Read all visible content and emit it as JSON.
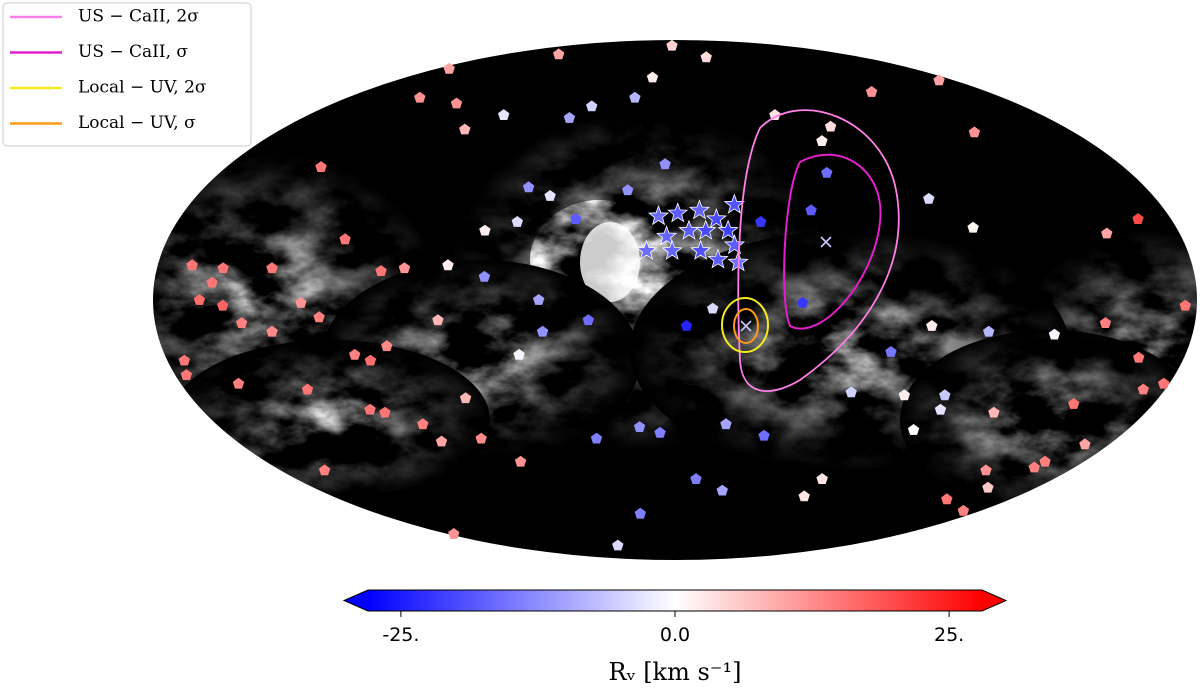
{
  "chart_data": {
    "type": "scatter",
    "colormap": "bwr",
    "clim": [
      -28,
      28
    ],
    "cticks": [
      {
        "value": -25,
        "label": "-25."
      },
      {
        "value": 0,
        "label": "0.0"
      },
      {
        "value": 25,
        "label": "25."
      }
    ],
    "colorbar_label": "Rᵥ [km s⁻¹]",
    "legend": [
      {
        "name": "US − CaII, 2σ",
        "color": "#ff80e8"
      },
      {
        "name": "US − CaII, σ",
        "color": "#e020c8"
      },
      {
        "name": "Local − UV, 2σ",
        "color": "#f4ec1a"
      },
      {
        "name": "Local − UV, σ",
        "color": "#ff9a1a"
      }
    ],
    "points": {
      "lon": [
        5,
        -30,
        170,
        122,
        15,
        22,
        140,
        115,
        43,
        51,
        84,
        -49,
        -72,
        -113,
        -170,
        96,
        -135,
        -64,
        142,
        4,
        -60,
        56,
        47,
        18,
        36,
        57,
        68,
        -31,
        -50,
        -95,
        -107,
        -168,
        -154,
        117,
        168,
        140,
        157,
        102,
        94,
        79,
        160,
        164,
        156,
        129,
        123,
        150,
        113,
        108,
        101,
        140,
        82,
        66,
        47,
        30,
        46,
        -4,
        -13,
        -44,
        -89,
        -76,
        -109,
        -132,
        -149,
        -176,
        55,
        176,
        174,
        -164,
        -178,
        -172,
        -100,
        -101,
        -85,
        -65,
        -150,
        159,
        135,
        116,
        111,
        78,
        99,
        96,
        79,
        14,
        6,
        -20,
        -36,
        32,
        -95,
        -122,
        -170,
        -163,
        -162,
        -142,
        -156,
        -70,
        -68,
        -10,
        -24,
        21,
        68,
        160,
        -146,
        -170,
        60,
        175
      ],
      "lat": [
        88,
        84,
        80,
        85,
        77,
        70,
        70,
        68,
        67,
        63,
        64,
        64,
        60,
        72,
        76,
        59,
        58,
        55,
        46,
        47,
        44,
        39,
        36,
        38,
        28,
        27,
        24,
        27,
        31,
        35,
        25,
        28,
        23,
        21,
        12,
        11,
        11,
        10,
        11,
        12,
        6,
        0,
        -2,
        -1,
        -6,
        -8,
        -19,
        -21,
        -16,
        -11,
        -7,
        8,
        0,
        -7,
        -11,
        -9,
        -3,
        -1,
        -9,
        -18,
        -11,
        -12,
        -8,
        -2,
        -19,
        -26,
        -21,
        -20,
        -29,
        -31,
        -33,
        -38,
        -33,
        -32,
        -36,
        -29,
        -31,
        -38,
        -39,
        -34,
        -43,
        -49,
        -48,
        -44,
        -46,
        -43,
        -47,
        -48,
        -45,
        -39,
        -50,
        -56,
        -58,
        -59,
        -65,
        -62,
        -68,
        -62,
        -66,
        -74,
        -56,
        -59,
        -69,
        -73,
        -85,
        -81
      ],
      "rv": [
        5,
        4,
        10,
        10,
        2,
        -8,
        12,
        12,
        -5,
        -10,
        -3,
        3,
        4,
        12,
        10,
        8,
        12,
        2,
        15,
        -12,
        -16,
        -12,
        -3,
        -12,
        -18,
        -4,
        2,
        -22,
        -18,
        -4,
        1,
        20,
        10,
        15,
        15,
        15,
        15,
        15,
        12,
        2,
        15,
        16,
        17,
        12,
        14,
        14,
        14,
        16,
        13,
        13,
        8,
        -12,
        -10,
        -16,
        -12,
        -24,
        -4,
        -22,
        2,
        -15,
        -8,
        -1,
        14,
        15,
        -1,
        15,
        15,
        15,
        15,
        14,
        -6,
        -3,
        2,
        -5,
        15,
        14,
        15,
        15,
        15,
        8,
        14,
        10,
        13,
        -12,
        -14,
        -10,
        -16,
        -14,
        0,
        8,
        10,
        14,
        14,
        12,
        6,
        3,
        3,
        -14,
        -10,
        -14,
        12,
        14,
        15,
        14,
        -4,
        12
      ]
    },
    "stars": {
      "lon": [
        6,
        -1,
        -9,
        -15,
        -22,
        3,
        -5,
        -11,
        -19,
        -21,
        10,
        1,
        -9,
        -15,
        -22
      ],
      "lat": [
        29,
        30,
        31,
        28,
        33,
        22,
        24,
        24,
        24,
        19,
        17,
        17,
        17,
        14,
        13
      ],
      "rv": [
        -16,
        -18,
        -17,
        -20,
        -19,
        -17,
        -18,
        -20,
        -21,
        -18,
        -16,
        -17,
        -19,
        -18,
        -16
      ]
    }
  }
}
